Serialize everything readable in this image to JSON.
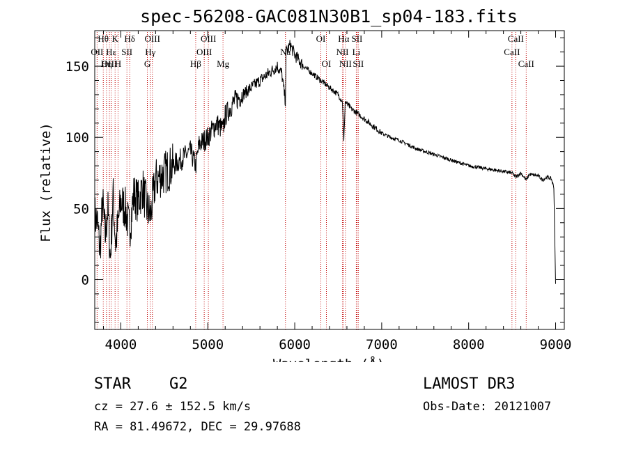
{
  "chart_data": {
    "type": "line",
    "title": "spec-56208-GAC081N30B1_sp04-183.fits",
    "xlabel": "Wavelength (Å)",
    "ylabel": "Flux (relative)",
    "xlim": [
      3700,
      9100
    ],
    "ylim": [
      -35,
      175
    ],
    "x_ticks": [
      4000,
      5000,
      6000,
      7000,
      8000,
      9000
    ],
    "x_tick_labels": [
      "4000",
      "5000",
      "6000",
      "7000",
      "8000",
      "9000"
    ],
    "y_ticks": [
      0,
      50,
      100,
      150
    ],
    "y_tick_labels": [
      "0",
      "50",
      "100",
      "150"
    ],
    "line_color": "#000000",
    "marker_color": "#c00000",
    "series": [
      {
        "name": "flux",
        "x": [
          3700,
          3730,
          3760,
          3790,
          3820,
          3850,
          3880,
          3910,
          3940,
          3970,
          4000,
          4050,
          4100,
          4150,
          4200,
          4250,
          4300,
          4340,
          4400,
          4500,
          4600,
          4700,
          4800,
          4861,
          4900,
          5000,
          5100,
          5175,
          5200,
          5300,
          5400,
          5500,
          5600,
          5700,
          5800,
          5850,
          5893,
          5900,
          5950,
          6000,
          6100,
          6200,
          6300,
          6400,
          6500,
          6550,
          6563,
          6580,
          6650,
          6700,
          6800,
          6900,
          7000,
          7100,
          7200,
          7300,
          7400,
          7500,
          7600,
          7700,
          7800,
          7900,
          8000,
          8100,
          8200,
          8300,
          8400,
          8498,
          8542,
          8600,
          8662,
          8700,
          8800,
          8850,
          8900,
          8950,
          8980,
          9000
        ],
        "y": [
          45,
          40,
          20,
          55,
          30,
          50,
          15,
          60,
          25,
          40,
          55,
          50,
          35,
          60,
          55,
          65,
          50,
          45,
          70,
          75,
          80,
          85,
          90,
          80,
          95,
          100,
          110,
          105,
          115,
          125,
          130,
          135,
          140,
          145,
          150,
          145,
          125,
          160,
          165,
          158,
          150,
          145,
          140,
          135,
          130,
          125,
          95,
          125,
          120,
          118,
          113,
          108,
          103,
          100,
          98,
          95,
          92,
          90,
          88,
          86,
          84,
          82,
          80,
          79,
          78,
          77,
          76,
          75,
          72,
          75,
          70,
          74,
          73,
          70,
          72,
          71,
          65,
          -3
        ]
      }
    ],
    "line_markers": [
      {
        "label": "Hθ",
        "x": 3798,
        "row": 0
      },
      {
        "label": "OII",
        "x": 3727,
        "row": 1
      },
      {
        "label": "OIII",
        "x": 3869,
        "row": 2
      },
      {
        "label": "Hε",
        "x": 3889,
        "row": 1
      },
      {
        "label": "Hη",
        "x": 3835,
        "row": 2
      },
      {
        "label": "K",
        "x": 3934,
        "row": 0
      },
      {
        "label": "H",
        "x": 3968,
        "row": 2
      },
      {
        "label": "Hδ",
        "x": 4102,
        "row": 0
      },
      {
        "label": "SII",
        "x": 4070,
        "row": 1
      },
      {
        "label": "OIII",
        "x": 4363,
        "row": 0
      },
      {
        "label": "Hγ",
        "x": 4340,
        "row": 1
      },
      {
        "label": "G",
        "x": 4305,
        "row": 2
      },
      {
        "label": "Hβ",
        "x": 4861,
        "row": 2
      },
      {
        "label": "OIII",
        "x": 5007,
        "row": 0
      },
      {
        "label": "OIII",
        "x": 4959,
        "row": 1
      },
      {
        "label": "Mg",
        "x": 5175,
        "row": 2
      },
      {
        "label": "Na",
        "x": 5893,
        "row": 1
      },
      {
        "label": "OI",
        "x": 6300,
        "row": 0
      },
      {
        "label": "OI",
        "x": 6364,
        "row": 2
      },
      {
        "label": "Hα",
        "x": 6563,
        "row": 0
      },
      {
        "label": "NII",
        "x": 6548,
        "row": 1
      },
      {
        "label": "NII",
        "x": 6583,
        "row": 2
      },
      {
        "label": "SII",
        "x": 6716,
        "row": 0
      },
      {
        "label": "Li",
        "x": 6708,
        "row": 1
      },
      {
        "label": "SII",
        "x": 6731,
        "row": 2
      },
      {
        "label": "CaII",
        "x": 8498,
        "row": 1
      },
      {
        "label": "CaII",
        "x": 8542,
        "row": 0
      },
      {
        "label": "CaII",
        "x": 8662,
        "row": 2
      }
    ]
  },
  "info": {
    "object_class": "STAR",
    "subclass": "G2",
    "survey": "LAMOST DR3",
    "redshift_text": "cz = 27.6 ± 152.5 km/s",
    "obs_date_text": "Obs-Date: 20121007",
    "coords_text": "RA =  81.49672, DEC =  29.97688"
  }
}
